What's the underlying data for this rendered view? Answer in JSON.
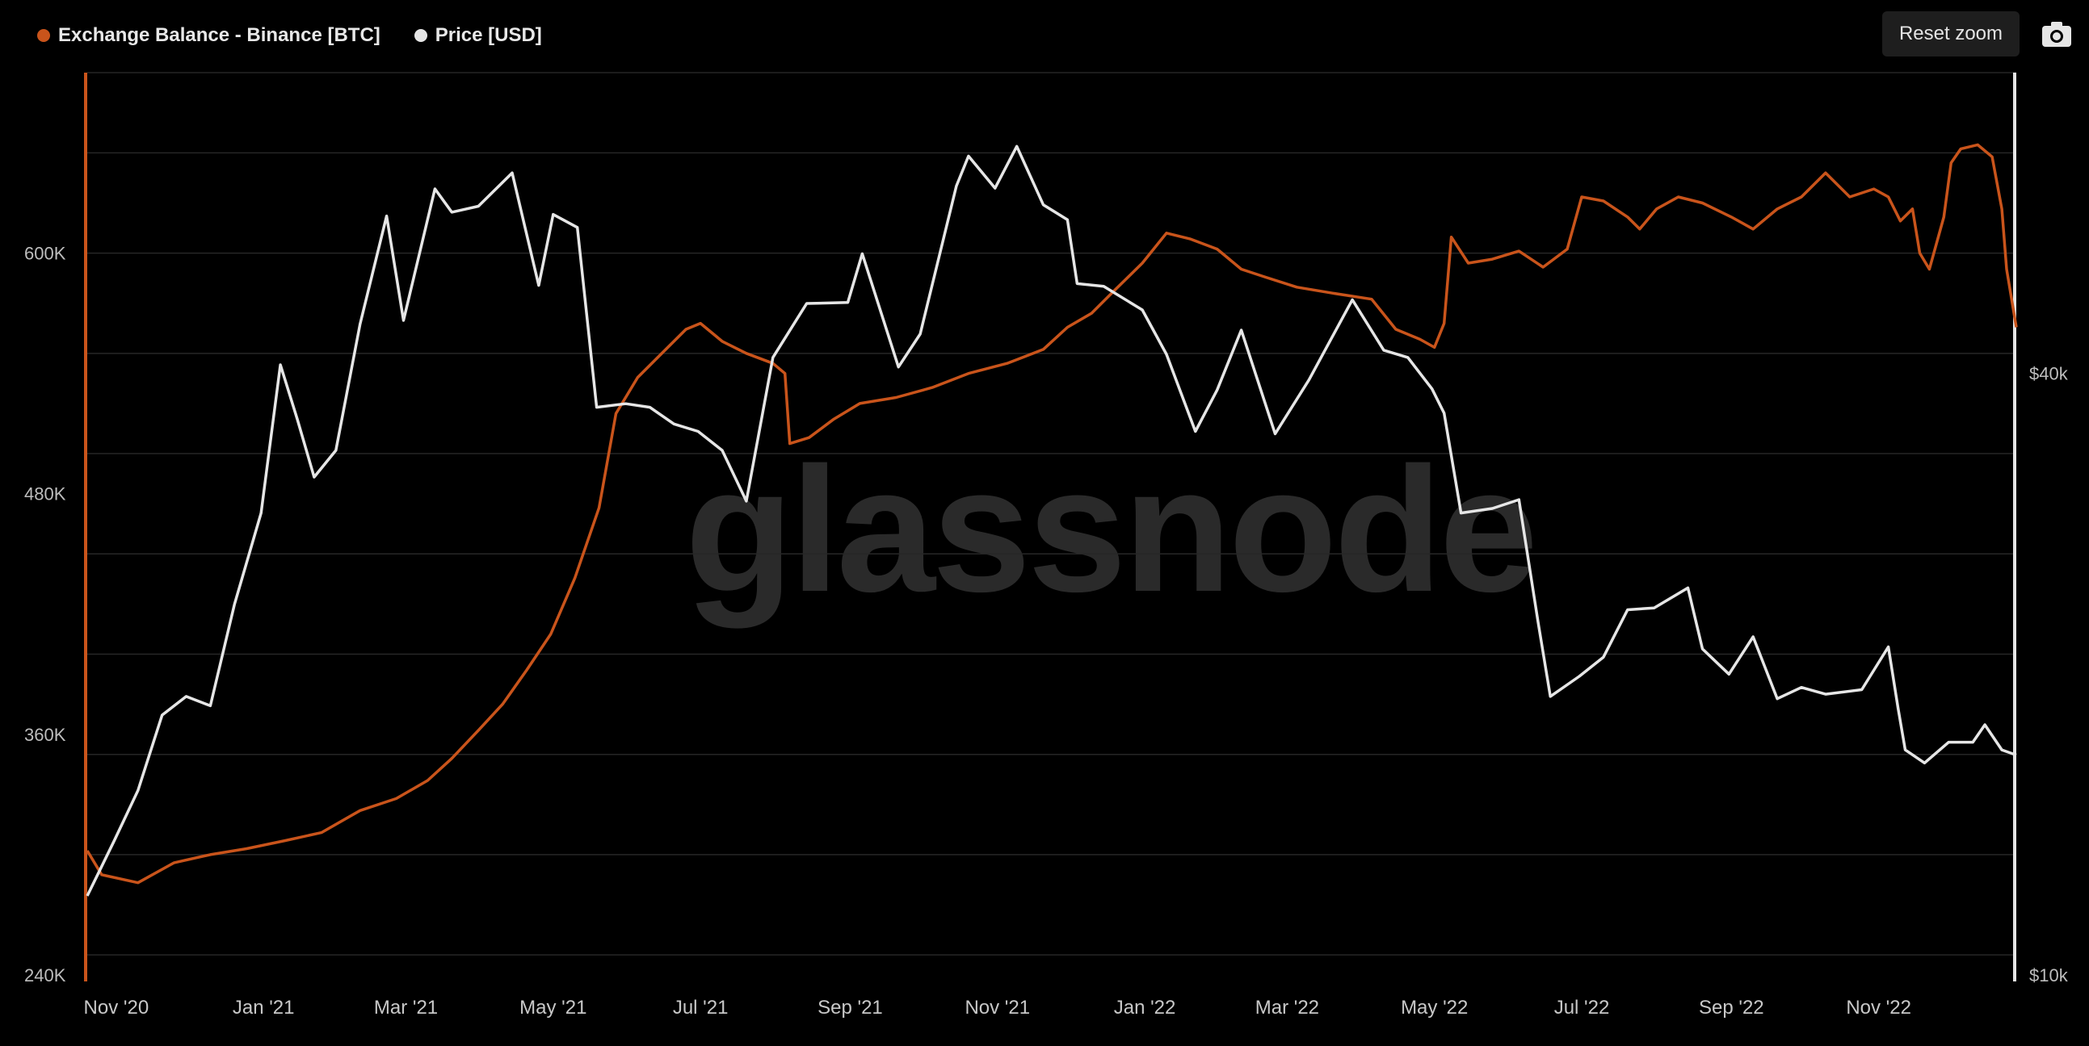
{
  "toolbar": {
    "reset_label": "Reset zoom",
    "camera_icon": "camera-icon"
  },
  "watermark": "glassnode",
  "colors": {
    "balance": "#c9541b",
    "price": "#e6e6e6",
    "grid": "#262626",
    "background": "#000000"
  },
  "chart_data": {
    "type": "line",
    "legend_placement": "top-left",
    "grid": true,
    "series": [
      {
        "name": "Exchange Balance - Binance [BTC]",
        "axis": "left",
        "color": "#c9541b",
        "points": [
          [
            "2020-10-20",
            302000
          ],
          [
            "2020-10-26",
            290000
          ],
          [
            "2020-11-10",
            286000
          ],
          [
            "2020-11-25",
            296000
          ],
          [
            "2020-12-10",
            300000
          ],
          [
            "2020-12-25",
            303000
          ],
          [
            "2021-01-10",
            307000
          ],
          [
            "2021-01-25",
            311000
          ],
          [
            "2021-02-10",
            322000
          ],
          [
            "2021-02-25",
            328000
          ],
          [
            "2021-03-10",
            337000
          ],
          [
            "2021-03-20",
            348000
          ],
          [
            "2021-03-31",
            362000
          ],
          [
            "2021-04-10",
            375000
          ],
          [
            "2021-04-20",
            392000
          ],
          [
            "2021-04-30",
            410000
          ],
          [
            "2021-05-10",
            438000
          ],
          [
            "2021-05-20",
            473000
          ],
          [
            "2021-05-27",
            520000
          ],
          [
            "2021-06-05",
            538000
          ],
          [
            "2021-06-15",
            550000
          ],
          [
            "2021-06-25",
            562000
          ],
          [
            "2021-07-01",
            565000
          ],
          [
            "2021-07-10",
            556000
          ],
          [
            "2021-07-20",
            550000
          ],
          [
            "2021-07-31",
            545000
          ],
          [
            "2021-08-05",
            540000
          ],
          [
            "2021-08-07",
            505000
          ],
          [
            "2021-08-15",
            508000
          ],
          [
            "2021-08-25",
            517000
          ],
          [
            "2021-09-05",
            525000
          ],
          [
            "2021-09-20",
            528000
          ],
          [
            "2021-10-05",
            533000
          ],
          [
            "2021-10-20",
            540000
          ],
          [
            "2021-11-05",
            545000
          ],
          [
            "2021-11-20",
            552000
          ],
          [
            "2021-11-30",
            563000
          ],
          [
            "2021-12-10",
            570000
          ],
          [
            "2021-12-20",
            582000
          ],
          [
            "2021-12-31",
            595000
          ],
          [
            "2022-01-10",
            610000
          ],
          [
            "2022-01-20",
            607000
          ],
          [
            "2022-01-31",
            602000
          ],
          [
            "2022-02-10",
            592000
          ],
          [
            "2022-02-20",
            588000
          ],
          [
            "2022-03-05",
            583000
          ],
          [
            "2022-03-20",
            580000
          ],
          [
            "2022-04-05",
            577000
          ],
          [
            "2022-04-15",
            562000
          ],
          [
            "2022-04-25",
            557000
          ],
          [
            "2022-05-01",
            553000
          ],
          [
            "2022-05-05",
            565000
          ],
          [
            "2022-05-08",
            608000
          ],
          [
            "2022-05-15",
            595000
          ],
          [
            "2022-05-25",
            597000
          ],
          [
            "2022-06-05",
            601000
          ],
          [
            "2022-06-15",
            593000
          ],
          [
            "2022-06-25",
            602000
          ],
          [
            "2022-07-01",
            628000
          ],
          [
            "2022-07-10",
            626000
          ],
          [
            "2022-07-20",
            618000
          ],
          [
            "2022-07-25",
            612000
          ],
          [
            "2022-08-01",
            622000
          ],
          [
            "2022-08-10",
            628000
          ],
          [
            "2022-08-20",
            625000
          ],
          [
            "2022-09-01",
            618000
          ],
          [
            "2022-09-10",
            612000
          ],
          [
            "2022-09-20",
            622000
          ],
          [
            "2022-09-30",
            628000
          ],
          [
            "2022-10-10",
            640000
          ],
          [
            "2022-10-20",
            628000
          ],
          [
            "2022-10-30",
            632000
          ],
          [
            "2022-11-05",
            628000
          ],
          [
            "2022-11-10",
            616000
          ],
          [
            "2022-11-15",
            622000
          ],
          [
            "2022-11-18",
            600000
          ],
          [
            "2022-11-22",
            592000
          ],
          [
            "2022-11-28",
            618000
          ],
          [
            "2022-12-01",
            645000
          ],
          [
            "2022-12-05",
            652000
          ],
          [
            "2022-12-12",
            654000
          ],
          [
            "2022-12-18",
            648000
          ],
          [
            "2022-12-22",
            622000
          ],
          [
            "2022-12-24",
            592000
          ],
          [
            "2022-12-28",
            563000
          ]
        ]
      },
      {
        "name": "Price [USD]",
        "axis": "right",
        "color": "#e6e6e6",
        "points": [
          [
            "2020-10-20",
            12000
          ],
          [
            "2020-10-31",
            13600
          ],
          [
            "2020-11-10",
            15300
          ],
          [
            "2020-11-20",
            18200
          ],
          [
            "2020-11-30",
            19000
          ],
          [
            "2020-12-10",
            18600
          ],
          [
            "2020-12-20",
            23500
          ],
          [
            "2020-12-31",
            29000
          ],
          [
            "2021-01-08",
            40800
          ],
          [
            "2021-01-15",
            36000
          ],
          [
            "2021-01-22",
            31500
          ],
          [
            "2021-01-31",
            33500
          ],
          [
            "2021-02-10",
            44800
          ],
          [
            "2021-02-21",
            57500
          ],
          [
            "2021-02-28",
            45200
          ],
          [
            "2021-03-13",
            61200
          ],
          [
            "2021-03-20",
            58000
          ],
          [
            "2021-03-31",
            58800
          ],
          [
            "2021-04-14",
            63500
          ],
          [
            "2021-04-25",
            49000
          ],
          [
            "2021-05-01",
            57700
          ],
          [
            "2021-05-11",
            56000
          ],
          [
            "2021-05-19",
            37000
          ],
          [
            "2021-05-31",
            37300
          ],
          [
            "2021-06-10",
            37000
          ],
          [
            "2021-06-20",
            35600
          ],
          [
            "2021-06-30",
            35000
          ],
          [
            "2021-07-10",
            33500
          ],
          [
            "2021-07-20",
            29800
          ],
          [
            "2021-07-31",
            41500
          ],
          [
            "2021-08-14",
            47000
          ],
          [
            "2021-08-31",
            47100
          ],
          [
            "2021-09-06",
            52700
          ],
          [
            "2021-09-21",
            40600
          ],
          [
            "2021-09-30",
            43800
          ],
          [
            "2021-10-15",
            61600
          ],
          [
            "2021-10-20",
            66000
          ],
          [
            "2021-10-31",
            61300
          ],
          [
            "2021-11-09",
            67500
          ],
          [
            "2021-11-20",
            59000
          ],
          [
            "2021-11-30",
            57000
          ],
          [
            "2021-12-04",
            49200
          ],
          [
            "2021-12-15",
            48900
          ],
          [
            "2021-12-31",
            46300
          ],
          [
            "2022-01-10",
            41800
          ],
          [
            "2022-01-22",
            35000
          ],
          [
            "2022-01-31",
            38500
          ],
          [
            "2022-02-10",
            44200
          ],
          [
            "2022-02-24",
            34800
          ],
          [
            "2022-03-10",
            39400
          ],
          [
            "2022-03-28",
            47400
          ],
          [
            "2022-04-10",
            42200
          ],
          [
            "2022-04-20",
            41500
          ],
          [
            "2022-04-30",
            38600
          ],
          [
            "2022-05-05",
            36500
          ],
          [
            "2022-05-12",
            29000
          ],
          [
            "2022-05-25",
            29300
          ],
          [
            "2022-06-05",
            29900
          ],
          [
            "2022-06-13",
            22500
          ],
          [
            "2022-06-18",
            19000
          ],
          [
            "2022-06-30",
            19900
          ],
          [
            "2022-07-10",
            20800
          ],
          [
            "2022-07-20",
            23200
          ],
          [
            "2022-07-31",
            23300
          ],
          [
            "2022-08-14",
            24400
          ],
          [
            "2022-08-20",
            21200
          ],
          [
            "2022-08-31",
            20000
          ],
          [
            "2022-09-10",
            21800
          ],
          [
            "2022-09-20",
            18900
          ],
          [
            "2022-09-30",
            19400
          ],
          [
            "2022-10-10",
            19100
          ],
          [
            "2022-10-25",
            19300
          ],
          [
            "2022-11-05",
            21300
          ],
          [
            "2022-11-09",
            18500
          ],
          [
            "2022-11-12",
            16800
          ],
          [
            "2022-11-20",
            16300
          ],
          [
            "2022-11-30",
            17100
          ],
          [
            "2022-12-10",
            17100
          ],
          [
            "2022-12-15",
            17800
          ],
          [
            "2022-12-22",
            16800
          ],
          [
            "2022-12-28",
            16600
          ]
        ]
      }
    ],
    "x_ticks": [
      "Nov '20",
      "Jan '21",
      "Mar '21",
      "May '21",
      "Jul '21",
      "Sep '21",
      "Nov '21",
      "Jan '22",
      "Mar '22",
      "May '22",
      "Jul '22",
      "Sep '22",
      "Nov '22"
    ],
    "x_range": [
      "2020-10-20",
      "2022-12-28"
    ],
    "y_left": {
      "ticks": [
        "600K",
        "480K",
        "360K",
        "240K"
      ],
      "values": [
        600000,
        480000,
        360000,
        240000
      ],
      "ylim": [
        240000,
        690000
      ]
    },
    "y_right": {
      "ticks": [
        "$40k",
        "$10k"
      ],
      "values": [
        40000,
        10000
      ],
      "scale": "log",
      "ylim": [
        10000,
        80000
      ]
    }
  }
}
